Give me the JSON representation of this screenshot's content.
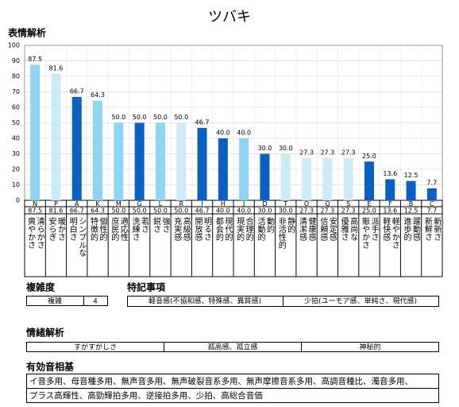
{
  "header": {
    "title": "ツバキ"
  },
  "chart_data": {
    "type": "bar",
    "title": "表情解析",
    "categories": [
      "N",
      "P",
      "A",
      "K",
      "M",
      "G",
      "L",
      "R",
      "I",
      "H",
      "J",
      "D",
      "T",
      "O",
      "Q",
      "S",
      "E",
      "F",
      "B",
      "C"
    ],
    "descriptions": [
      [
        "清らかさ",
        "爽やかさ"
      ],
      [
        "暖かさ",
        "安らぎ"
      ],
      [
        "シンプルな",
        "明白さ"
      ],
      [
        "個性的",
        "特徴的"
      ],
      [
        "適応性",
        "庶民的"
      ],
      [
        "若さ",
        "洗練さ"
      ],
      [
        "強さ",
        "鋭さ"
      ],
      [
        "高級感",
        "充実感"
      ],
      [
        "明るさ",
        "開放感"
      ],
      [
        "現代的",
        "都会的"
      ],
      [
        "合理的",
        "現実的"
      ],
      [
        "動的",
        "活動的"
      ],
      [
        "静的",
        "非活性的"
      ],
      [
        "健康感",
        "清潔感"
      ],
      [
        "安定感",
        "信頼感"
      ],
      [
        "高尚な",
        "優雅さ"
      ],
      [
        "派手さ",
        "賑やかさ"
      ],
      [
        "軽やかさ",
        "軽快感"
      ],
      [
        "躍動感",
        "進歩的"
      ],
      [
        "斬新さ",
        "新鮮さ"
      ]
    ],
    "values": [
      87.5,
      81.6,
      66.7,
      64.3,
      50,
      50,
      50,
      50,
      46.7,
      40,
      40,
      30,
      30,
      27.3,
      27.3,
      27.3,
      25,
      13.6,
      12.5,
      7.7
    ],
    "value_labels": [
      "87.5",
      "81.6",
      "66.7",
      "64.3",
      "50.0",
      "50.0",
      "50.0",
      "50.0",
      "46.7",
      "40.0",
      "40.0",
      "30.0",
      "30.0",
      "27.3",
      "27.3",
      "27.3",
      "25.0",
      "13.6",
      "12.5",
      "7.7"
    ],
    "colors": [
      "#8fd4f5",
      "#cdeaf8",
      "#0a5fc4",
      "#8fd4f5",
      "#8fd4f5",
      "#0a5fc4",
      "#8fd4f5",
      "#cdeaf8",
      "#0a5fc4",
      "#0a5fc4",
      "#8fd4f5",
      "#0a5fc4",
      "#cdeaf8",
      "#cdeaf8",
      "#cdeaf8",
      "#cdeaf8",
      "#0a5fc4",
      "#0a5fc4",
      "#0a5fc4",
      "#0a5fc4"
    ],
    "ylim": [
      0,
      100
    ],
    "yticks": [
      0,
      10,
      20,
      30,
      40,
      50,
      60,
      70,
      80,
      90,
      100
    ],
    "grid": true
  },
  "complexity": {
    "title": "複雑度",
    "label": "複雑",
    "value": 4
  },
  "notes": {
    "title": "特記事項",
    "items": [
      "軽音感(不協和感、特殊感、異質感)",
      "少拍(ユーモア感、単純さ、現代感)"
    ]
  },
  "emotion": {
    "title": "情緒解析",
    "items": [
      "すがすがしさ",
      "孤高感、孤立感",
      "神秘的"
    ]
  },
  "effective": {
    "title": "有効音相基",
    "lines": [
      "イ音多用、母音種多用、無声音多用、無声破裂音系多用、無声摩擦音系多用、高調音種比、濁音多用、",
      "プラス高輝性、高勁輝拍多用、逆接拍多用、少拍、高総合音価"
    ]
  }
}
